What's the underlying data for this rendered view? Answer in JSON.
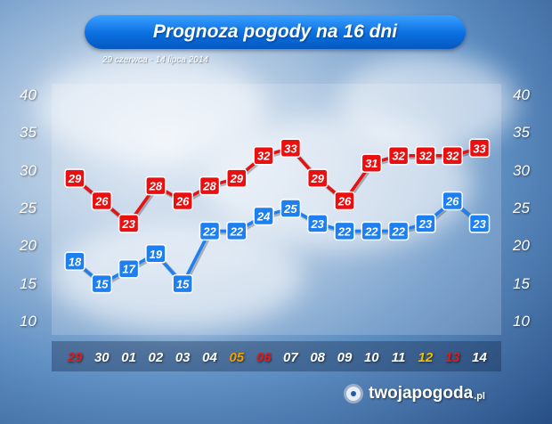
{
  "chart_data": {
    "type": "line",
    "title": "Prognoza pogody na 16 dni",
    "subtitle": "29 czerwca - 14 lipca 2014",
    "categories": [
      "29",
      "30",
      "01",
      "02",
      "03",
      "04",
      "05",
      "06",
      "07",
      "08",
      "09",
      "10",
      "11",
      "12",
      "13",
      "14"
    ],
    "category_colors": [
      "#e01b1b",
      "#ffffff",
      "#ffffff",
      "#ffffff",
      "#ffffff",
      "#ffffff",
      "#f0a000",
      "#e01b1b",
      "#ffffff",
      "#ffffff",
      "#ffffff",
      "#ffffff",
      "#ffffff",
      "#f0c000",
      "#e01b1b",
      "#ffffff"
    ],
    "series": [
      {
        "color": "#e81010",
        "values": [
          29,
          26,
          23,
          28,
          26,
          28,
          29,
          32,
          33,
          29,
          26,
          31,
          32,
          32,
          32,
          33
        ]
      },
      {
        "color": "#1e7ff0",
        "values": [
          18,
          15,
          17,
          19,
          15,
          22,
          22,
          24,
          25,
          23,
          22,
          22,
          22,
          23,
          26,
          23
        ]
      }
    ],
    "ylim": [
      10,
      40
    ],
    "yticks": [
      "40",
      "35",
      "30",
      "25",
      "20",
      "15",
      "10"
    ],
    "grid": false
  },
  "brand": {
    "name": "twojapogoda",
    "tld": ".pl"
  }
}
